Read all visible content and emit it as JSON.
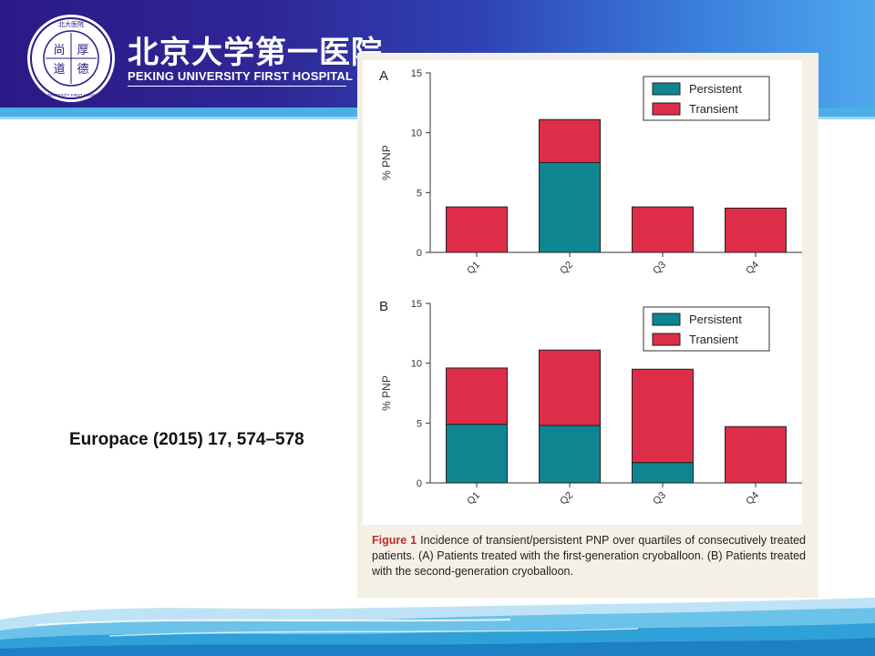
{
  "header": {
    "seal_text_cn": "北大医院",
    "seal_motto": [
      "尚",
      "厚",
      "道",
      "德"
    ],
    "seal_ring_text": "PEKING UNIVERSITY FIRST HOSPITAL 1915",
    "name_cn": "北京大学第一医院",
    "name_en": "PEKING UNIVERSITY FIRST HOSPITAL"
  },
  "citation": "Europace (2015) 17, 574–578",
  "figure": {
    "caption_label": "Figure 1",
    "caption_text": " Incidence of transient/persistent PNP over quartiles of consecutively treated patients. (A) Patients treated with the first-generation cryoballoon. (B) Patients treated with the second-generation cryoballoon."
  },
  "colors": {
    "persistent": "#0f8592",
    "transient": "#dd2d48",
    "header_dark": "#2a1a86",
    "header_light": "#4fa8ee"
  },
  "chart_data": [
    {
      "type": "bar",
      "stacked": true,
      "panel_label": "A",
      "categories": [
        "Q1",
        "Q2",
        "Q3",
        "Q4"
      ],
      "series": [
        {
          "name": "Persistent",
          "values": [
            0,
            7.5,
            0,
            0
          ]
        },
        {
          "name": "Transient",
          "values": [
            3.8,
            3.6,
            3.8,
            3.7
          ]
        }
      ],
      "ylabel": "% PNP",
      "ylim": [
        0,
        15
      ],
      "yticks": [
        0,
        5,
        10,
        15
      ],
      "legend": "top-right",
      "grid": false
    },
    {
      "type": "bar",
      "stacked": true,
      "panel_label": "B",
      "categories": [
        "Q1",
        "Q2",
        "Q3",
        "Q4"
      ],
      "series": [
        {
          "name": "Persistent",
          "values": [
            4.9,
            4.8,
            1.7,
            0
          ]
        },
        {
          "name": "Transient",
          "values": [
            4.7,
            6.3,
            7.8,
            4.7
          ]
        }
      ],
      "ylabel": "% PNP",
      "ylim": [
        0,
        15
      ],
      "yticks": [
        0,
        5,
        10,
        15
      ],
      "legend": "top-right",
      "grid": false
    }
  ]
}
